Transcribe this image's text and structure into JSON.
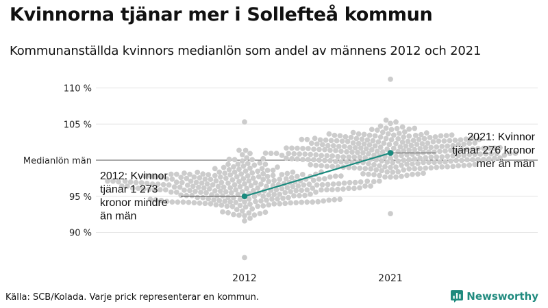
{
  "header": {
    "title": "Kvinnorna tjänar mer i Sollefteå kommun",
    "subtitle": "Kommunanställda kvinnors medianlön som andel av männens 2012 och 2021"
  },
  "footer": {
    "source": "Källa: SCB/Kolada. Varje prick representerar en kommun.",
    "brand": "Newsworthy"
  },
  "colors": {
    "dots": "#cccccc",
    "highlight": "#1a8a7e",
    "grid": "#e2e2e2",
    "reference": "#555555"
  },
  "chart_data": {
    "type": "scatter",
    "style": "beeswarm",
    "categories": [
      "2012",
      "2021"
    ],
    "ylim": [
      86.5,
      111.5
    ],
    "yticks": [
      {
        "value": 90,
        "label": "90 %"
      },
      {
        "value": 95,
        "label": "95 %"
      },
      {
        "value": 100,
        "label": "Medianlön män"
      },
      {
        "value": 105,
        "label": "105 %"
      },
      {
        "value": 110,
        "label": "110 %"
      }
    ],
    "reference_line": {
      "value": 100,
      "label": "Medianlön män"
    },
    "grid": true,
    "distributions": [
      {
        "category": "2012",
        "min": 86.5,
        "max": 105.3,
        "center": 96.3
      },
      {
        "category": "2021",
        "min": 92.6,
        "max": 111.2,
        "center": 101.0
      }
    ],
    "highlight": {
      "name": "Sollefteå",
      "points": [
        {
          "x": "2012",
          "y": 95.0
        },
        {
          "x": "2021",
          "y": 101.0
        }
      ]
    },
    "annotations": [
      {
        "x": "2012",
        "text": "2012: Kvinnor tjänar 1 273 kronor mindre än män",
        "lines": [
          "2012: Kvinnor",
          "tjänar 1 273",
          "kronor mindre",
          "än män"
        ]
      },
      {
        "x": "2021",
        "text": "2021: Kvinnor tjänar 276 kronor mer än män",
        "lines": [
          "2021: Kvinnor",
          "tjänar 276 kronor",
          "mer än män"
        ]
      }
    ]
  }
}
